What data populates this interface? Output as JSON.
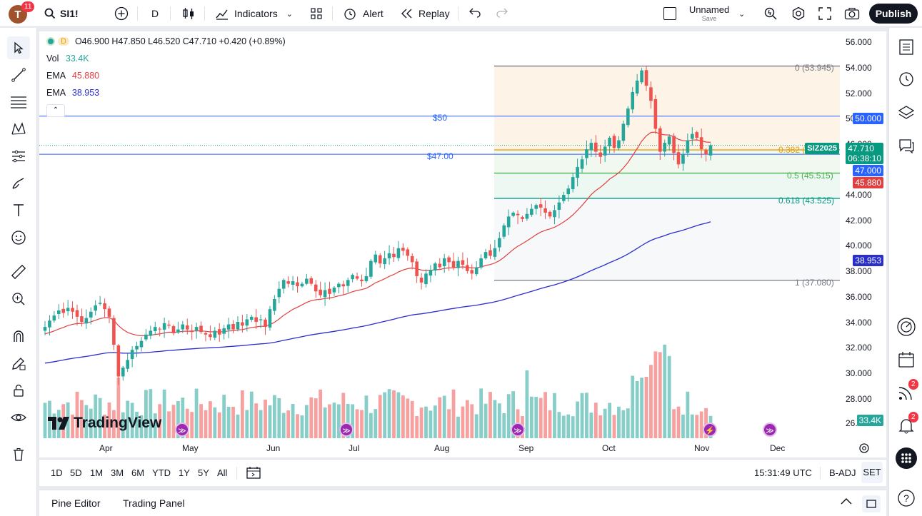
{
  "topbar": {
    "avatar_letter": "T",
    "avatar_badge": "11",
    "symbol": "SI1!",
    "interval": "D",
    "indicators_label": "Indicators",
    "alert_label": "Alert",
    "replay_label": "Replay",
    "layout_name": "Unnamed",
    "layout_save": "Save",
    "publish_label": "Publish"
  },
  "legend": {
    "interval": "D",
    "ohlc": "O46.900 H47.850 L46.520 C47.710 +0.420 (+0.89%)",
    "vol_label": "Vol",
    "vol_value": "33.4K",
    "ema1_label": "EMA",
    "ema1_value": "45.880",
    "ema2_label": "EMA",
    "ema2_value": "38.953"
  },
  "drawings": {
    "hline_50_label": "$50",
    "hline_47_label": "$47.00",
    "fib": [
      {
        "label": "0 (53.945)",
        "price": 53.945
      },
      {
        "label": "0.382 (",
        "price": 47.34
      },
      {
        "label": "0.5 (45.515)",
        "price": 45.515
      },
      {
        "label": "0.618 (43.525)",
        "price": 43.525
      },
      {
        "label": "1 (37.080)",
        "price": 37.08
      }
    ]
  },
  "price_scale": {
    "ticks": [
      "56.000",
      "54.000",
      "52.000",
      "50.000",
      "46.000",
      "44.000",
      "42.000",
      "40.000",
      "38.000",
      "36.000",
      "34.000",
      "32.000",
      "30.000",
      "28.000",
      "26.000"
    ],
    "labels": {
      "level_50": "50.000",
      "symbol_tag": "SIZ2025",
      "last_price": "47.710",
      "countdown": "06:38:10",
      "level_47": "47.000",
      "ema1": "45.880",
      "ema2": "38.953",
      "volume": "33.4K"
    }
  },
  "time_scale": {
    "ticks": [
      "Apr",
      "May",
      "Jun",
      "Jul",
      "Aug",
      "Sep",
      "Oct",
      "Nov",
      "Dec"
    ]
  },
  "range_bar": {
    "ranges": [
      "1D",
      "5D",
      "1M",
      "3M",
      "6M",
      "YTD",
      "1Y",
      "5Y",
      "All"
    ],
    "clock": "15:31:49 UTC",
    "adj": "B-ADJ",
    "session": "SET"
  },
  "bottom_panel": {
    "tabs": [
      "Pine Editor",
      "Trading Panel"
    ]
  },
  "right_badges": {
    "news": "2",
    "alerts": "2"
  },
  "watermark": "TradingView",
  "colors": {
    "up": "#26a69a",
    "down": "#ef5350",
    "ema_fast": "#e04040",
    "ema_slow": "#2a2ecd",
    "blue_line": "#2962ff",
    "fib_orange": "#e3a008",
    "fib_green": "#4caf50",
    "fib_teal": "#089981",
    "fib_gray": "#787b86",
    "publish_bg": "#131722"
  },
  "chart_data": {
    "type": "candlestick",
    "symbol": "SIZ2025",
    "x_ticks": [
      "Apr",
      "May",
      "Jun",
      "Jul",
      "Aug",
      "Sep",
      "Oct",
      "Nov",
      "Dec"
    ],
    "y_range": [
      26,
      56.5
    ],
    "last": {
      "open": 46.9,
      "high": 47.85,
      "low": 46.52,
      "close": 47.71
    },
    "closes": [
      33.4,
      33.9,
      34.3,
      34.7,
      34.5,
      34.9,
      34.6,
      34.2,
      33.8,
      34.1,
      34.6,
      35.1,
      35.3,
      34.8,
      34.2,
      32.0,
      29.5,
      30.2,
      30.8,
      31.6,
      31.9,
      32.3,
      32.8,
      33.1,
      33.4,
      33.2,
      33.7,
      33.5,
      32.9,
      33.2,
      33.6,
      33.2,
      33.0,
      33.4,
      33.0,
      32.8,
      32.6,
      33.1,
      32.8,
      33.3,
      33.6,
      33.2,
      33.8,
      33.5,
      34.0,
      34.2,
      33.8,
      34.0,
      33.4,
      34.8,
      35.6,
      36.4,
      37.1,
      36.8,
      37.0,
      36.6,
      36.8,
      37.2,
      36.8,
      36.2,
      35.9,
      36.3,
      36.0,
      36.5,
      36.8,
      36.6,
      37.1,
      37.5,
      37.2,
      37.0,
      37.4,
      38.6,
      39.1,
      38.4,
      38.8,
      39.2,
      38.9,
      39.6,
      39.4,
      39.0,
      38.5,
      37.4,
      36.9,
      37.6,
      37.9,
      38.4,
      38.1,
      38.8,
      38.5,
      38.1,
      38.6,
      38.3,
      37.8,
      37.6,
      38.1,
      38.8,
      39.3,
      39.0,
      39.6,
      40.4,
      41.4,
      42.1,
      42.4,
      42.2,
      41.9,
      42.3,
      42.7,
      43.0,
      42.8,
      42.4,
      42.1,
      42.6,
      43.2,
      43.8,
      44.3,
      45.2,
      46.0,
      46.6,
      47.4,
      47.9,
      47.2,
      46.8,
      47.6,
      48.3,
      47.5,
      48.1,
      49.4,
      50.6,
      51.9,
      52.8,
      53.6,
      52.4,
      51.2,
      49.0,
      47.2,
      47.9,
      48.4,
      47.1,
      46.2,
      47.0,
      48.1,
      48.6,
      48.3,
      47.4,
      47.0,
      47.71
    ],
    "ema_fast_last": 45.88,
    "ema_slow_last": 38.953,
    "volume_last": "33.4K"
  }
}
